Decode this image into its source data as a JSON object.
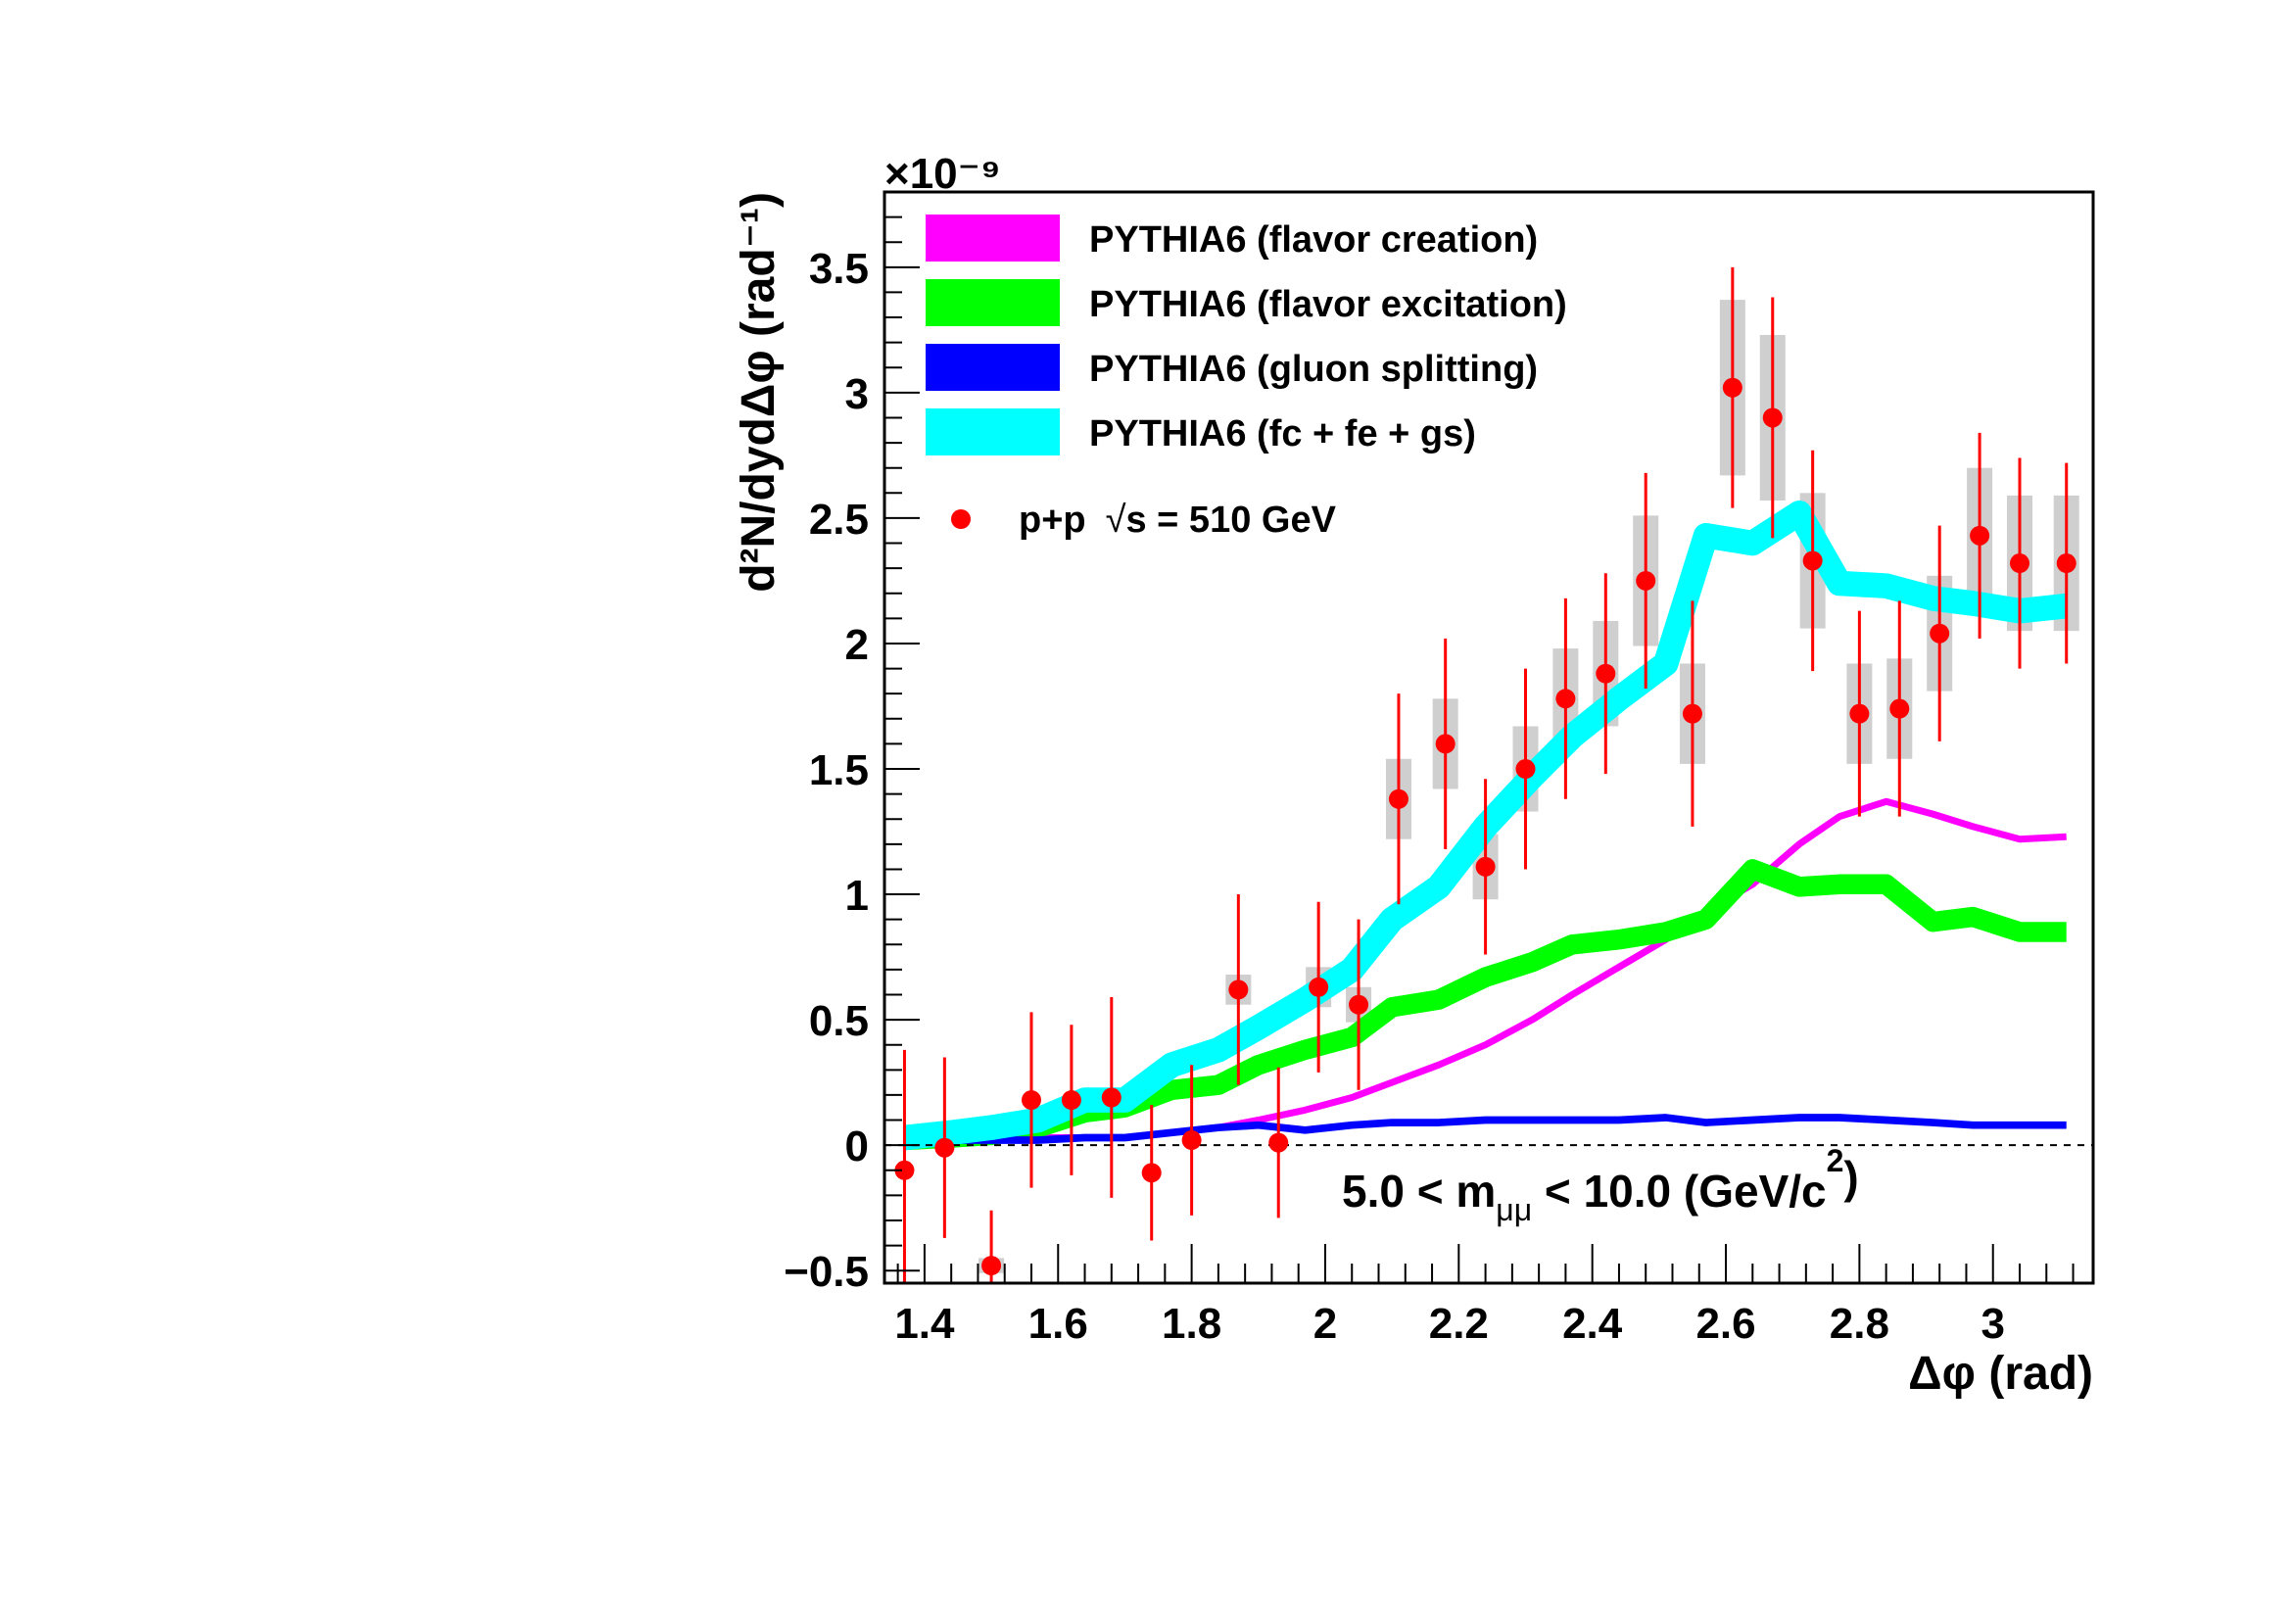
{
  "chart_data": {
    "type": "line",
    "xlabel": "Δφ (rad)",
    "ylabel": "d²N/dydΔφ (rad⁻¹)",
    "y_multiplier": "×10⁻⁹",
    "xlim": [
      1.34,
      3.15
    ],
    "ylim": [
      -0.55,
      3.8
    ],
    "x_ticks": [
      1.4,
      1.6,
      1.8,
      2.0,
      2.2,
      2.4,
      2.6,
      2.8,
      3.0
    ],
    "x_tick_labels": [
      "1.4",
      "1.6",
      "1.8",
      "2",
      "2.2",
      "2.4",
      "2.6",
      "2.8",
      "3"
    ],
    "y_ticks": [
      -0.5,
      0,
      0.5,
      1,
      1.5,
      2,
      2.5,
      3,
      3.5
    ],
    "y_tick_labels": [
      "−0.5",
      "0",
      "0.5",
      "1",
      "1.5",
      "2",
      "2.5",
      "3",
      "3.5"
    ],
    "annotation": {
      "text_main": "5.0 < m",
      "text_sub": "μμ",
      "text_after": " < 10.0 (GeV/c",
      "text_sup": "2",
      "text_end": ")"
    },
    "legend_placement": "top-left",
    "bands": [
      {
        "name": "PYTHIA6 (flavor creation)",
        "color": "#ff00ff",
        "x": [
          1.37,
          1.44,
          1.5,
          1.57,
          1.64,
          1.7,
          1.77,
          1.84,
          1.9,
          1.97,
          2.04,
          2.1,
          2.17,
          2.24,
          2.31,
          2.37,
          2.44,
          2.51,
          2.57,
          2.64,
          2.71,
          2.77,
          2.84,
          2.91,
          2.97,
          3.04,
          3.11
        ],
        "y": [
          0.02,
          0.02,
          0.02,
          0.03,
          0.03,
          0.03,
          0.05,
          0.07,
          0.1,
          0.14,
          0.19,
          0.25,
          0.32,
          0.4,
          0.5,
          0.6,
          0.71,
          0.82,
          0.93,
          1.04,
          1.2,
          1.31,
          1.37,
          1.32,
          1.27,
          1.22,
          1.23
        ],
        "width": 0.02
      },
      {
        "name": "PYTHIA6 (flavor excitation)",
        "color": "#00ff00",
        "x": [
          1.37,
          1.44,
          1.5,
          1.57,
          1.64,
          1.7,
          1.77,
          1.84,
          1.9,
          1.97,
          2.04,
          2.1,
          2.17,
          2.24,
          2.31,
          2.37,
          2.44,
          2.51,
          2.57,
          2.64,
          2.71,
          2.77,
          2.84,
          2.91,
          2.97,
          3.04,
          3.11
        ],
        "y": [
          0.02,
          0.03,
          0.04,
          0.07,
          0.13,
          0.15,
          0.22,
          0.24,
          0.32,
          0.38,
          0.43,
          0.55,
          0.58,
          0.67,
          0.73,
          0.8,
          0.82,
          0.85,
          0.9,
          1.1,
          1.03,
          1.04,
          1.04,
          0.89,
          0.91,
          0.85,
          0.85
        ],
        "width": 0.08
      },
      {
        "name": "PYTHIA6 (gluon splitting)",
        "color": "#0000ff",
        "x": [
          1.37,
          1.44,
          1.5,
          1.57,
          1.64,
          1.7,
          1.77,
          1.84,
          1.9,
          1.97,
          2.04,
          2.1,
          2.17,
          2.24,
          2.31,
          2.37,
          2.44,
          2.51,
          2.57,
          2.64,
          2.71,
          2.77,
          2.84,
          2.91,
          2.97,
          3.04,
          3.11
        ],
        "y": [
          0.02,
          0.02,
          0.02,
          0.02,
          0.03,
          0.03,
          0.05,
          0.07,
          0.08,
          0.06,
          0.08,
          0.09,
          0.09,
          0.1,
          0.1,
          0.1,
          0.1,
          0.11,
          0.09,
          0.1,
          0.11,
          0.11,
          0.1,
          0.09,
          0.08,
          0.08,
          0.08
        ],
        "width": 0.03
      },
      {
        "name": "PYTHIA6 (fc + fe + gs)",
        "color": "#00ffff",
        "x": [
          1.37,
          1.44,
          1.5,
          1.57,
          1.64,
          1.7,
          1.77,
          1.84,
          1.9,
          1.97,
          2.04,
          2.1,
          2.17,
          2.24,
          2.31,
          2.37,
          2.44,
          2.51,
          2.57,
          2.64,
          2.71,
          2.77,
          2.84,
          2.91,
          2.97,
          3.04,
          3.11
        ],
        "y": [
          0.03,
          0.05,
          0.07,
          0.1,
          0.18,
          0.18,
          0.32,
          0.38,
          0.47,
          0.58,
          0.7,
          0.9,
          1.03,
          1.27,
          1.47,
          1.63,
          1.78,
          1.92,
          2.43,
          2.4,
          2.52,
          2.24,
          2.23,
          2.18,
          2.16,
          2.13,
          2.15
        ],
        "width": 0.1
      }
    ],
    "data_series": {
      "name": "p+p",
      "name_sqrt": "s",
      "name_after": " = 510 GeV",
      "color": "#ff0000",
      "x": [
        1.37,
        1.43,
        1.5,
        1.56,
        1.62,
        1.68,
        1.74,
        1.8,
        1.87,
        1.93,
        1.99,
        2.05,
        2.11,
        2.18,
        2.24,
        2.3,
        2.36,
        2.42,
        2.48,
        2.55,
        2.61,
        2.67,
        2.73,
        2.8,
        2.86,
        2.92,
        2.98,
        3.04,
        3.11
      ],
      "y": [
        -0.1,
        -0.01,
        -0.48,
        0.18,
        0.18,
        0.19,
        -0.11,
        0.02,
        0.62,
        0.01,
        0.63,
        0.56,
        1.38,
        1.6,
        1.11,
        1.5,
        1.78,
        1.88,
        2.25,
        1.72,
        3.02,
        2.9,
        2.33,
        1.72,
        1.74,
        2.04,
        2.43,
        2.32,
        2.32
      ],
      "stat_err": [
        0.48,
        0.36,
        0.22,
        0.35,
        0.3,
        0.4,
        0.27,
        0.3,
        0.38,
        0.3,
        0.34,
        0.34,
        0.42,
        0.42,
        0.35,
        0.4,
        0.4,
        0.4,
        0.43,
        0.45,
        0.48,
        0.48,
        0.44,
        0.41,
        0.43,
        0.43,
        0.41,
        0.42,
        0.4
      ],
      "sys_err": [
        0.0,
        0.0,
        0.03,
        0.0,
        0.0,
        0.0,
        0.0,
        0.0,
        0.06,
        0.0,
        0.08,
        0.07,
        0.16,
        0.18,
        0.13,
        0.17,
        0.2,
        0.21,
        0.26,
        0.2,
        0.35,
        0.33,
        0.27,
        0.2,
        0.2,
        0.23,
        0.27,
        0.27,
        0.27
      ]
    }
  }
}
